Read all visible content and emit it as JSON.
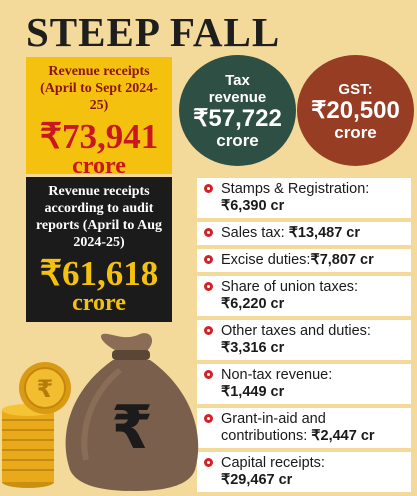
{
  "title": "STEEP FALL",
  "box_estimate": {
    "label": "Revenue receipts (April to Sept 2024-25)",
    "amount": "₹73,941",
    "unit": "crore"
  },
  "box_audit": {
    "label": "Revenue receipts according to audit reports (April to Aug 2024-25)",
    "amount": "₹61,618",
    "unit": "crore"
  },
  "tax_revenue": {
    "label": "Tax revenue",
    "amount": "₹57,722",
    "unit": "crore"
  },
  "gst": {
    "label": "GST:",
    "amount": "₹20,500",
    "unit": "crore"
  },
  "items": [
    {
      "label": "Stamps & Registration:",
      "value": "₹6,390 cr"
    },
    {
      "label": "Sales tax:",
      "value": "₹13,487 cr"
    },
    {
      "label": "Excise duties:",
      "value": "₹7,807 cr"
    },
    {
      "label": "Share of union taxes:",
      "value": "₹6,220 cr"
    },
    {
      "label": "Other taxes and duties:",
      "value": "₹3,316 cr"
    },
    {
      "label": "Non-tax revenue:",
      "value": "₹1,449 cr"
    },
    {
      "label": "Grant-in-aid and contributions:",
      "value": "₹2,447 cr"
    },
    {
      "label": "Capital receipts:",
      "value": "₹29,467 cr"
    }
  ],
  "illustration": {
    "bag_symbol": "₹"
  },
  "colors": {
    "background": "#f3d99a",
    "yellow": "#f5c10f",
    "red": "#c8171e",
    "dark": "#1b1b1b",
    "green": "#2e4f43",
    "brown": "#963d24",
    "bag": "#7a5f4c"
  }
}
